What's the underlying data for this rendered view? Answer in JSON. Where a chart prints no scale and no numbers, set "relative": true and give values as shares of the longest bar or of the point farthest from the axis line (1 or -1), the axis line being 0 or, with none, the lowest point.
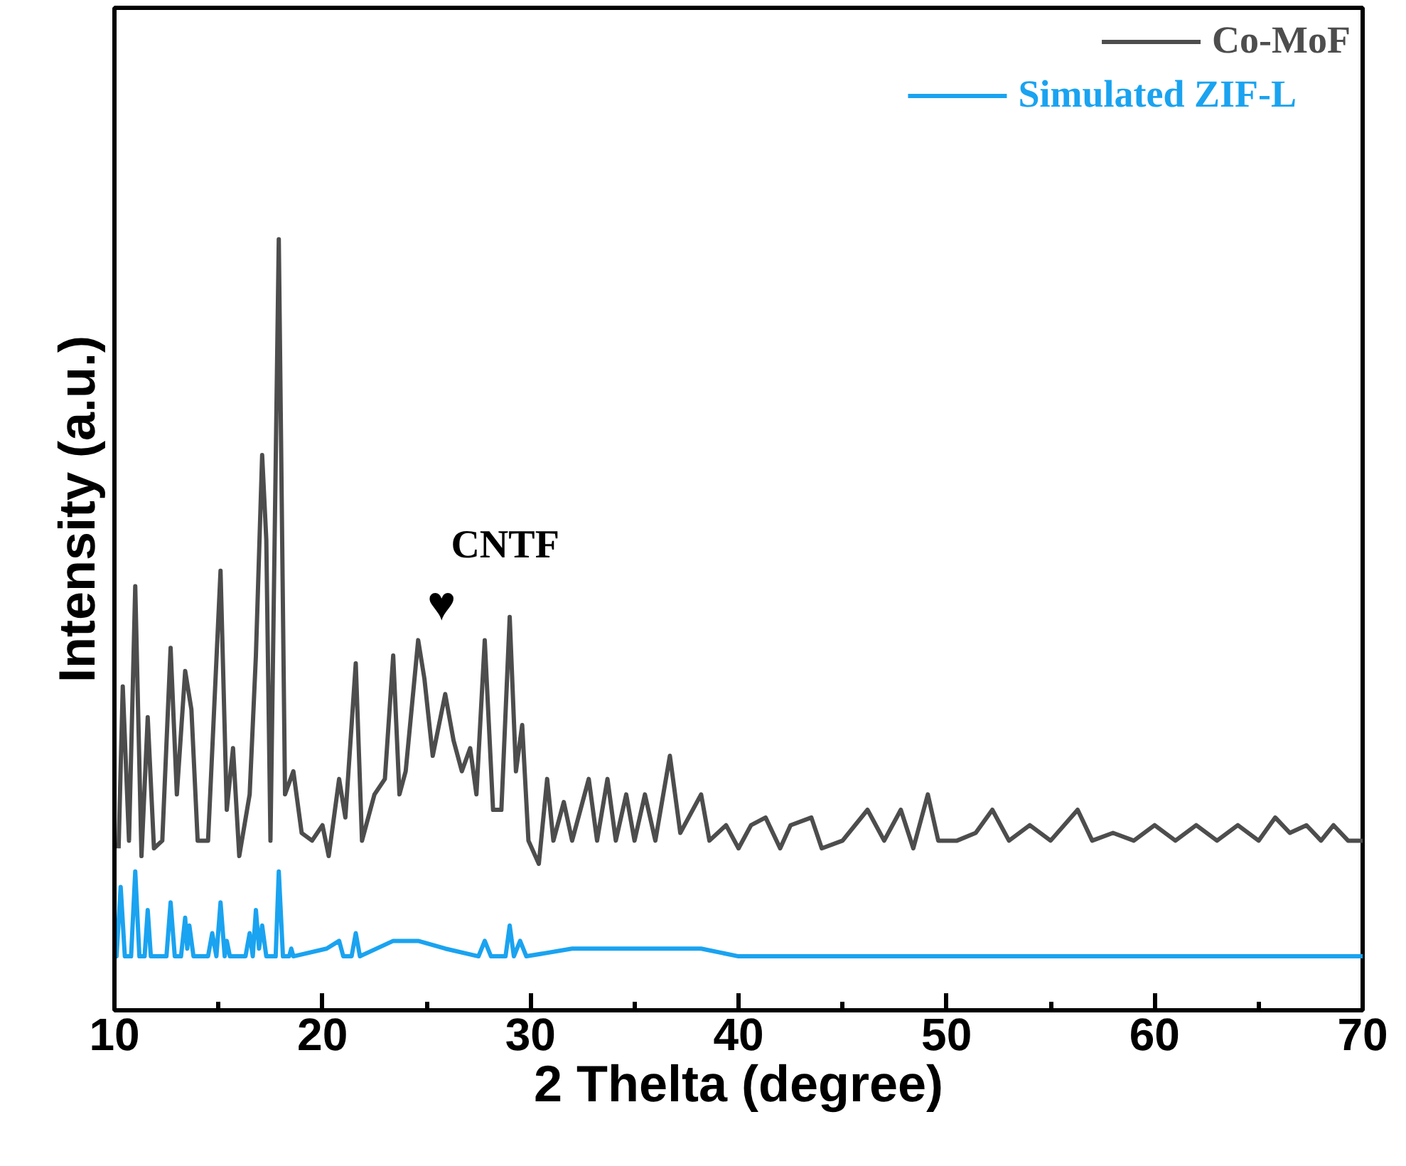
{
  "chart_data": {
    "type": "line",
    "relative": true,
    "xlabel": "2 Thelta (degree)",
    "ylabel": "Intensity (a.u.)",
    "xlim": [
      10,
      70
    ],
    "xticks": [
      10,
      {
        "value": 15,
        "label": null
      },
      20,
      {
        "value": 25,
        "label": null
      },
      30,
      {
        "value": 35,
        "label": null
      },
      40,
      {
        "value": 45,
        "label": null
      },
      50,
      {
        "value": 55,
        "label": null
      },
      60,
      {
        "value": 65,
        "label": null
      },
      70
    ],
    "grid": false,
    "legend": "top right",
    "line_style": "solid",
    "annotations": [
      "CNTF",
      "♥"
    ],
    "series": [
      {
        "name": "Co-MoF",
        "color": "#4d4d4d",
        "x": [
          10.2,
          10.4,
          10.7,
          11.0,
          11.3,
          11.6,
          11.9,
          12.3,
          12.7,
          13.0,
          13.4,
          13.7,
          14.0,
          14.5,
          15.1,
          15.4,
          15.7,
          16.0,
          16.5,
          16.8,
          17.1,
          17.3,
          17.5,
          17.9,
          18.2,
          18.6,
          19.0,
          19.5,
          20.0,
          20.3,
          20.8,
          21.1,
          21.6,
          21.9,
          22.5,
          23.0,
          23.4,
          23.7,
          24.0,
          24.6,
          24.9,
          25.3,
          25.9,
          26.3,
          26.7,
          27.1,
          27.4,
          27.8,
          28.2,
          28.6,
          29.0,
          29.3,
          29.6,
          29.9,
          30.4,
          30.8,
          31.1,
          31.6,
          32.0,
          32.8,
          33.2,
          33.7,
          34.1,
          34.6,
          35.0,
          35.5,
          36.0,
          36.7,
          37.2,
          37.6,
          38.2,
          38.6,
          39.4,
          40.0,
          40.6,
          41.3,
          42.0,
          42.5,
          43.5,
          44.0,
          45.0,
          46.2,
          47.0,
          47.8,
          48.4,
          49.1,
          49.6,
          50.5,
          51.4,
          52.2,
          53.0,
          54.0,
          55.0,
          56.3,
          57.0,
          58.0,
          59.0,
          60.0,
          61.0,
          62.0,
          63.0,
          64.0,
          65.0,
          65.8,
          66.5,
          67.3,
          68.0,
          68.6,
          69.3,
          70.0
        ],
        "values": [
          0.21,
          0.42,
          0.22,
          0.55,
          0.2,
          0.38,
          0.21,
          0.22,
          0.47,
          0.28,
          0.44,
          0.39,
          0.22,
          0.22,
          0.57,
          0.26,
          0.34,
          0.2,
          0.28,
          0.46,
          0.72,
          0.61,
          0.22,
          1.0,
          0.28,
          0.31,
          0.23,
          0.22,
          0.24,
          0.2,
          0.3,
          0.25,
          0.45,
          0.22,
          0.28,
          0.3,
          0.46,
          0.28,
          0.31,
          0.48,
          0.43,
          0.33,
          0.41,
          0.35,
          0.31,
          0.34,
          0.28,
          0.48,
          0.26,
          0.26,
          0.51,
          0.31,
          0.37,
          0.22,
          0.19,
          0.3,
          0.22,
          0.27,
          0.22,
          0.3,
          0.22,
          0.3,
          0.22,
          0.28,
          0.22,
          0.28,
          0.22,
          0.33,
          0.23,
          0.25,
          0.28,
          0.22,
          0.24,
          0.21,
          0.24,
          0.25,
          0.21,
          0.24,
          0.25,
          0.21,
          0.22,
          0.26,
          0.22,
          0.26,
          0.21,
          0.28,
          0.22,
          0.22,
          0.23,
          0.26,
          0.22,
          0.24,
          0.22,
          0.26,
          0.22,
          0.23,
          0.22,
          0.24,
          0.22,
          0.24,
          0.22,
          0.24,
          0.22,
          0.25,
          0.23,
          0.24,
          0.22,
          0.24,
          0.22,
          0.22
        ]
      },
      {
        "name": "Simulated ZIF-L",
        "color": "#1aa3f0",
        "x": [
          10.0,
          10.1,
          10.3,
          10.5,
          10.8,
          11.0,
          11.2,
          11.45,
          11.6,
          11.75,
          12.5,
          12.7,
          12.9,
          13.2,
          13.4,
          13.5,
          13.6,
          13.8,
          14.5,
          14.7,
          14.9,
          15.1,
          15.3,
          15.4,
          15.55,
          16.3,
          16.5,
          16.65,
          16.8,
          16.95,
          17.1,
          17.3,
          17.75,
          17.9,
          18.1,
          18.4,
          18.5,
          18.6,
          20.2,
          20.8,
          21.0,
          21.4,
          21.6,
          21.8,
          23.4,
          24.6,
          25.9,
          27.5,
          27.8,
          28.1,
          28.8,
          29.0,
          29.2,
          29.5,
          29.8,
          32.0,
          36.6,
          38.2,
          40.0,
          70.0
        ],
        "values": [
          0.07,
          0.07,
          0.16,
          0.07,
          0.07,
          0.18,
          0.07,
          0.07,
          0.13,
          0.07,
          0.07,
          0.14,
          0.07,
          0.07,
          0.12,
          0.08,
          0.11,
          0.07,
          0.07,
          0.1,
          0.07,
          0.14,
          0.07,
          0.09,
          0.07,
          0.07,
          0.1,
          0.07,
          0.13,
          0.08,
          0.11,
          0.07,
          0.07,
          0.18,
          0.07,
          0.07,
          0.08,
          0.07,
          0.08,
          0.09,
          0.07,
          0.07,
          0.1,
          0.07,
          0.09,
          0.09,
          0.08,
          0.07,
          0.09,
          0.07,
          0.07,
          0.11,
          0.07,
          0.09,
          0.07,
          0.08,
          0.08,
          0.08,
          0.07,
          0.07
        ]
      }
    ]
  }
}
